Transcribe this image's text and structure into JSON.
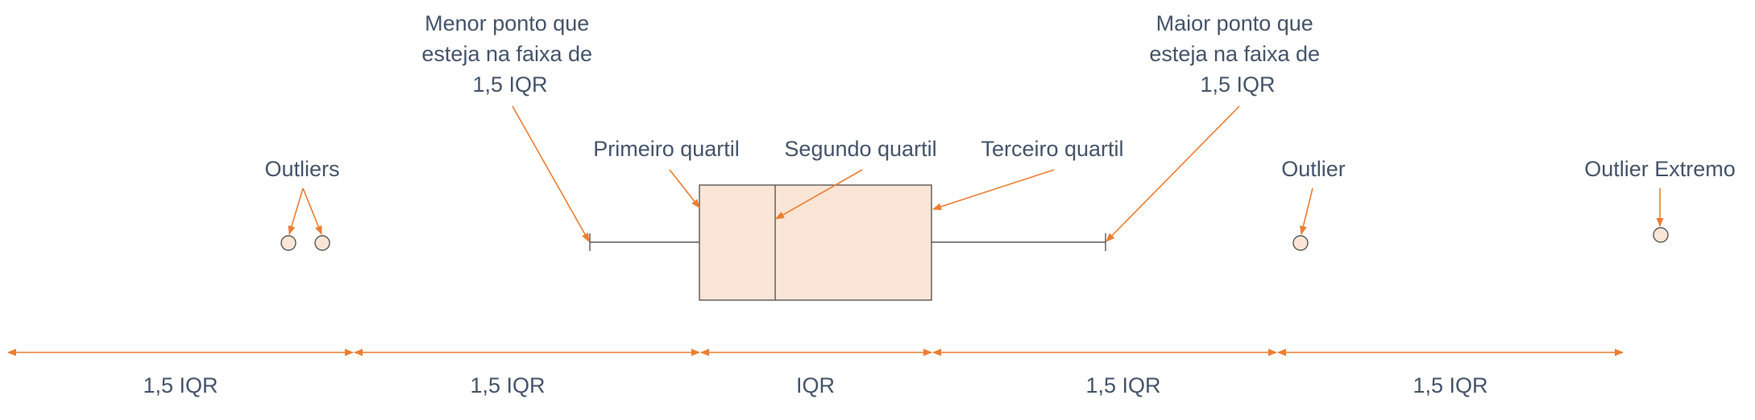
{
  "annotations": {
    "min_point": [
      "Menor ponto que",
      "esteja na faixa de",
      "1,5 IQR"
    ],
    "max_point": [
      "Maior ponto que",
      "esteja na faixa de",
      "1,5 IQR"
    ],
    "outliers_left": "Outliers",
    "first_quartile": "Primeiro quartil",
    "second_quartile": "Segundo quartil",
    "third_quartile": "Terceiro quartil",
    "outlier_right": "Outlier",
    "outlier_extreme": "Outlier Extremo"
  },
  "ranges": [
    "1,5 IQR",
    "1,5 IQR",
    "IQR",
    "1,5 IQR",
    "1,5 IQR"
  ],
  "colors": {
    "arrow": "#ed7d31",
    "box_fill": "#fbe5d6",
    "text": "#44546a",
    "line": "#595959"
  }
}
